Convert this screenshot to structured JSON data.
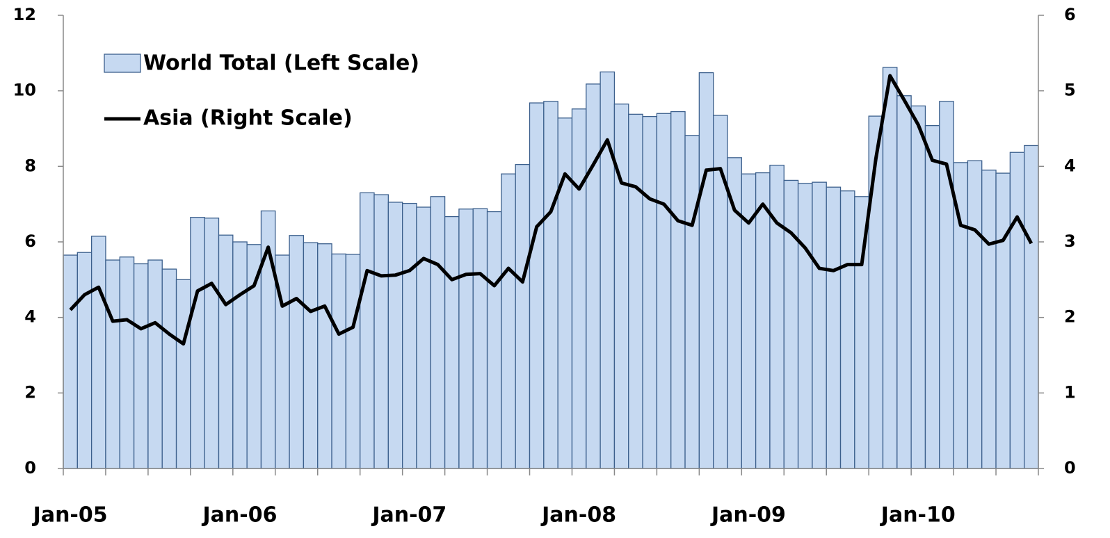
{
  "chart_data": {
    "type": "bar_line",
    "categories": [
      "Jan-05",
      null,
      null,
      null,
      null,
      null,
      null,
      null,
      null,
      null,
      null,
      null,
      "Jan-06",
      null,
      null,
      null,
      null,
      null,
      null,
      null,
      null,
      null,
      null,
      null,
      "Jan-07",
      null,
      null,
      null,
      null,
      null,
      null,
      null,
      null,
      null,
      null,
      null,
      "Jan-08",
      null,
      null,
      null,
      null,
      null,
      null,
      null,
      null,
      null,
      null,
      null,
      "Jan-09",
      null,
      null,
      null,
      null,
      null,
      null,
      null,
      null,
      null,
      null,
      null,
      "Jan-10",
      null,
      null,
      null,
      null,
      null,
      null,
      null,
      null
    ],
    "series": [
      {
        "name": "World Total (Left Scale)",
        "type": "bar",
        "color": "#c6d9f1",
        "edge": "#3b5f8c",
        "values": [
          5.65,
          5.72,
          6.15,
          5.52,
          5.6,
          5.42,
          5.52,
          5.28,
          5.0,
          6.65,
          6.63,
          6.18,
          6.0,
          5.93,
          6.82,
          5.65,
          6.17,
          5.98,
          5.95,
          5.68,
          5.67,
          7.3,
          7.25,
          7.05,
          7.02,
          6.92,
          7.2,
          6.67,
          6.87,
          6.88,
          6.8,
          7.8,
          8.05,
          9.68,
          9.72,
          9.28,
          9.52,
          10.18,
          10.5,
          9.65,
          9.38,
          9.32,
          9.4,
          9.45,
          8.82,
          10.48,
          9.35,
          8.23,
          7.8,
          7.83,
          8.03,
          7.63,
          7.55,
          7.58,
          7.45,
          7.35,
          7.2,
          9.33,
          10.62,
          9.87,
          9.6,
          9.08,
          9.72,
          8.1,
          8.15,
          7.9,
          7.82,
          8.37,
          8.55
        ]
      },
      {
        "name": "Asia (Right Scale)",
        "type": "line",
        "axis": "y2",
        "color": "#000000",
        "values": [
          2.1,
          2.3,
          2.4,
          1.95,
          1.97,
          1.85,
          1.93,
          1.78,
          1.65,
          2.35,
          2.45,
          2.17,
          2.3,
          2.42,
          2.93,
          2.15,
          2.25,
          2.08,
          2.15,
          1.78,
          1.87,
          2.62,
          2.55,
          2.56,
          2.62,
          2.78,
          2.7,
          2.5,
          2.57,
          2.58,
          2.42,
          2.65,
          2.47,
          3.2,
          3.4,
          3.9,
          3.7,
          4.02,
          4.35,
          3.78,
          3.73,
          3.57,
          3.5,
          3.28,
          3.22,
          3.95,
          3.97,
          3.42,
          3.25,
          3.5,
          3.25,
          3.12,
          2.92,
          2.65,
          2.62,
          2.7,
          2.7,
          4.1,
          5.2,
          4.88,
          4.55,
          4.08,
          4.03,
          3.22,
          3.16,
          2.97,
          3.02,
          3.33,
          2.98
        ]
      }
    ],
    "ylim": [
      0,
      12
    ],
    "yticks": [
      0,
      2,
      4,
      6,
      8,
      10,
      12
    ],
    "y2lim": [
      0,
      6
    ],
    "y2ticks": [
      0,
      1,
      2,
      3,
      4,
      5,
      6
    ],
    "legend": "upper left"
  }
}
